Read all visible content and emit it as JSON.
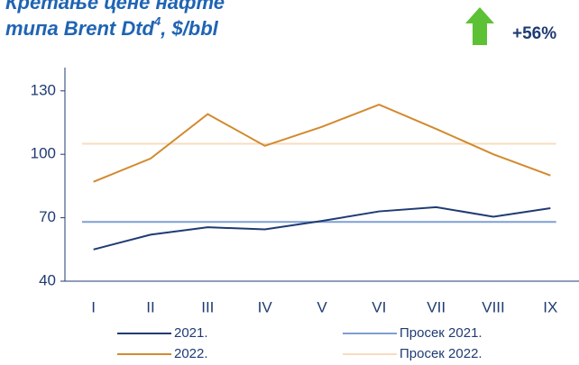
{
  "chart_data": {
    "type": "line",
    "title_lines": [
      "Кретање цене нафте",
      "типа Brent Dtd"
    ],
    "title_sup": "4",
    "title_tail": ", $/bbl",
    "annotation": "+56%",
    "categories": [
      "I",
      "II",
      "III",
      "IV",
      "V",
      "VI",
      "VII",
      "VIII",
      "IX"
    ],
    "series": [
      {
        "name": "2021.",
        "color": "#1f3b73",
        "values": [
          55,
          62,
          65.5,
          64.5,
          68.5,
          73,
          75,
          70.5,
          74.5
        ]
      },
      {
        "name": "Просек 2021.",
        "color": "#7f9fd4",
        "value": 68
      },
      {
        "name": "2022.",
        "color": "#d28a2e",
        "values": [
          87,
          98,
          119,
          104,
          113,
          123.5,
          112,
          100,
          90
        ]
      },
      {
        "name": "Просек 2022.",
        "color": "#f8dcbd",
        "value": 105
      }
    ],
    "ylim": [
      40,
      141
    ],
    "yticks": [
      40,
      70,
      100,
      130
    ],
    "grid": false
  }
}
